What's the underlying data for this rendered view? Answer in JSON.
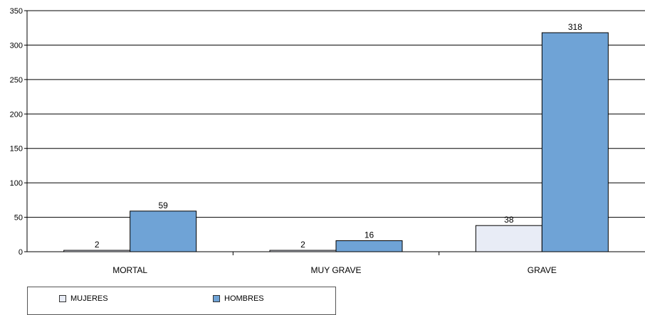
{
  "chart_data": {
    "type": "bar",
    "categories": [
      "MORTAL",
      "MUY GRAVE",
      "GRAVE"
    ],
    "series": [
      {
        "name": "MUJERES",
        "values": [
          2,
          2,
          38
        ],
        "color": "#e8ecf6"
      },
      {
        "name": "HOMBRES",
        "values": [
          59,
          16,
          318
        ],
        "color": "#6fa3d6"
      }
    ],
    "ylim": [
      0,
      350
    ],
    "yticks": [
      0,
      50,
      100,
      150,
      200,
      250,
      300,
      350
    ],
    "grid": true,
    "legend_position": "bottom-left"
  }
}
